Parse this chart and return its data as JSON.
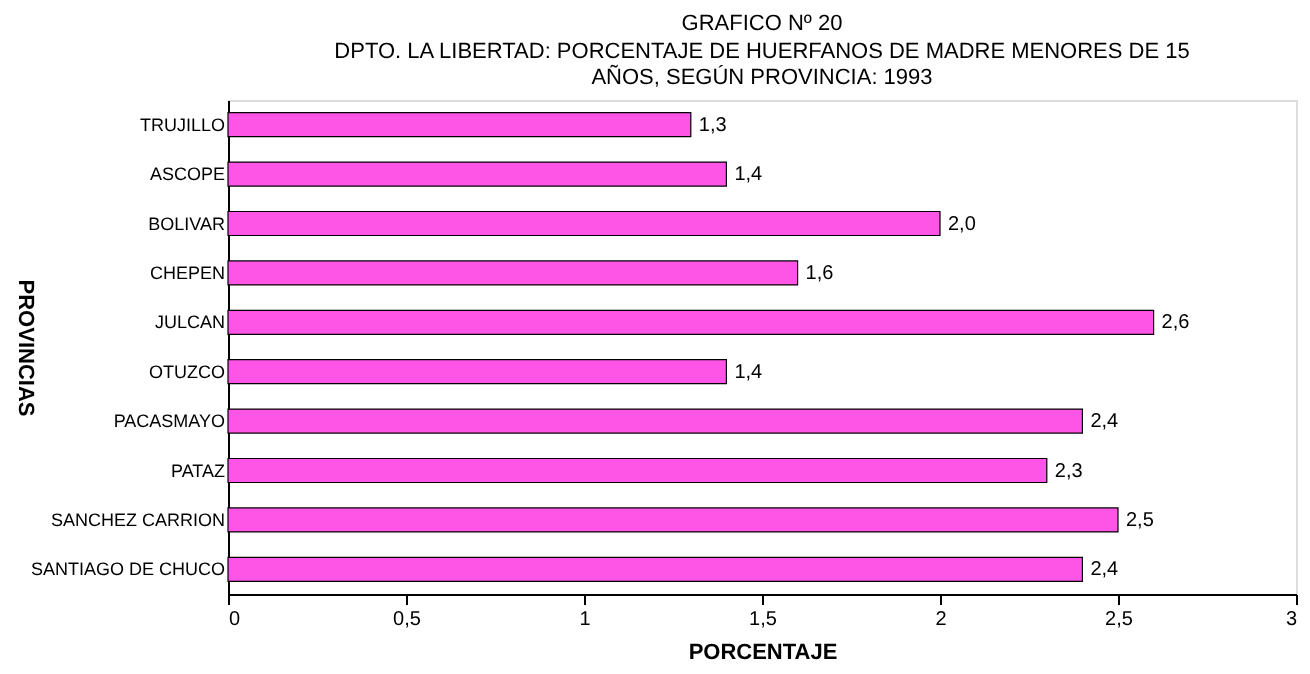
{
  "chart_data": {
    "type": "bar",
    "orientation": "horizontal",
    "title": "GRAFICO Nº 20",
    "subtitle": "DPTO. LA LIBERTAD: PORCENTAJE DE HUERFANOS DE MADRE MENORES DE 15 AÑOS, SEGÚN PROVINCIA: 1993",
    "xlabel": "PORCENTAJE",
    "ylabel": "PROVINCIAS",
    "categories": [
      "TRUJILLO",
      "ASCOPE",
      "BOLIVAR",
      "CHEPEN",
      "JULCAN",
      "OTUZCO",
      "PACASMAYO",
      "PATAZ",
      "SANCHEZ CARRION",
      "SANTIAGO DE CHUCO"
    ],
    "values": [
      1.3,
      1.4,
      2.0,
      1.6,
      2.6,
      1.4,
      2.4,
      2.3,
      2.5,
      2.4
    ],
    "value_labels": [
      "1,3",
      "1,4",
      "2,0",
      "1,6",
      "2,6",
      "1,4",
      "2,4",
      "2,3",
      "2,5",
      "2,4"
    ],
    "color": "#ff55e6",
    "xlim": [
      0,
      3
    ],
    "xticks": [
      0,
      {
        "value": 0.5,
        "label": "0,5"
      },
      1,
      {
        "value": 1.5,
        "label": "1,5"
      },
      2,
      {
        "value": 2.5,
        "label": "2,5"
      },
      3
    ],
    "grid": false
  }
}
